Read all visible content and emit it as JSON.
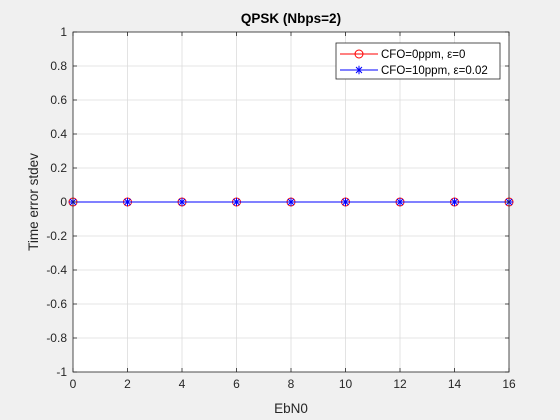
{
  "chart_data": {
    "type": "line",
    "title": "QPSK (Nbps=2)",
    "xlabel": "EbN0",
    "ylabel": "Time error stdev",
    "xlim": [
      0,
      16
    ],
    "ylim": [
      -1,
      1
    ],
    "xticks": [
      0,
      2,
      4,
      6,
      8,
      10,
      12,
      14,
      16
    ],
    "yticks": [
      1,
      0.8,
      0.6,
      0.4,
      0.2,
      0,
      -0.2,
      -0.4,
      -0.6,
      -0.8,
      -1
    ],
    "ytick_labels": [
      "1",
      "0.8",
      "0.6",
      "0.4",
      "0.2",
      "0",
      "-0.2",
      "-0.4",
      "-0.6",
      "-0.8",
      "-1"
    ],
    "grid": true,
    "legend_position": "top-right",
    "x": [
      0,
      2,
      4,
      6,
      8,
      10,
      12,
      14,
      16
    ],
    "series": [
      {
        "name": "CFO=0ppm, ε=0",
        "values": [
          0,
          0,
          0,
          0,
          0,
          0,
          0,
          0,
          0
        ],
        "color": "#ff0000",
        "marker": "circle"
      },
      {
        "name": "CFO=10ppm, ε=0.02",
        "values": [
          0,
          0,
          0,
          0,
          0,
          0,
          0,
          0,
          0
        ],
        "color": "#0000ff",
        "marker": "asterisk"
      }
    ]
  }
}
